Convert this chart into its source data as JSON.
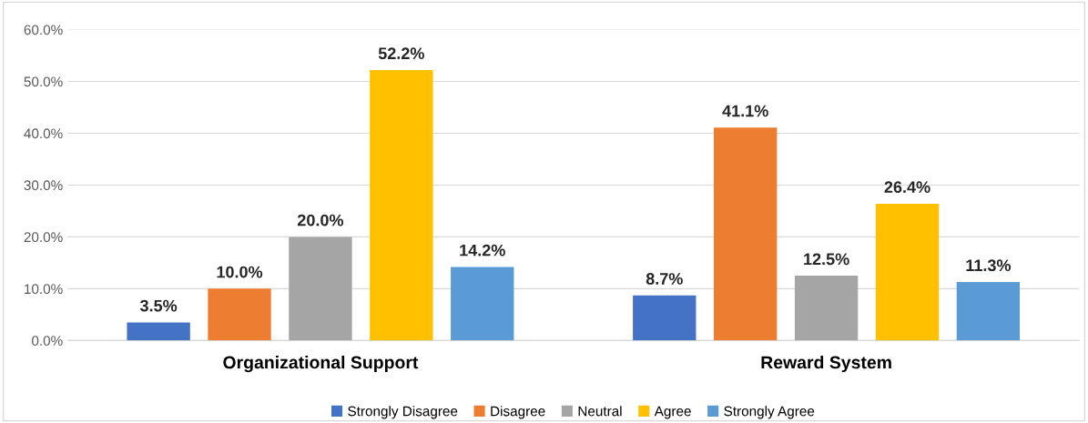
{
  "chart_data": {
    "type": "bar",
    "categories": [
      "Organizational Support",
      "Reward System"
    ],
    "series": [
      {
        "name": "Strongly Disagree",
        "color": "#4472c4",
        "values": [
          3.5,
          8.7
        ],
        "value_labels": [
          "3.5%",
          "8.7%"
        ]
      },
      {
        "name": "Disagree",
        "color": "#ed7d31",
        "values": [
          10.0,
          41.1
        ],
        "value_labels": [
          "10.0%",
          "41.1%"
        ]
      },
      {
        "name": "Neutral",
        "color": "#a5a5a5",
        "values": [
          20.0,
          12.5
        ],
        "value_labels": [
          "20.0%",
          "12.5%"
        ]
      },
      {
        "name": "Agree",
        "color": "#ffc000",
        "values": [
          52.2,
          26.4
        ],
        "value_labels": [
          "52.2%",
          "26.4%"
        ]
      },
      {
        "name": "Strongly Agree",
        "color": "#5b9bd5",
        "values": [
          14.2,
          11.3
        ],
        "value_labels": [
          "14.2%",
          "11.3%"
        ]
      }
    ],
    "ylim": [
      0,
      60
    ],
    "yticks": [
      {
        "value": 0,
        "label": "0.0%"
      },
      {
        "value": 10,
        "label": "10.0%"
      },
      {
        "value": 20,
        "label": "20.0%"
      },
      {
        "value": 30,
        "label": "30.0%"
      },
      {
        "value": 40,
        "label": "40.0%"
      },
      {
        "value": 50,
        "label": "50.0%"
      },
      {
        "value": 60,
        "label": "60.0%"
      }
    ],
    "grid": "y",
    "legend": "bottom"
  }
}
